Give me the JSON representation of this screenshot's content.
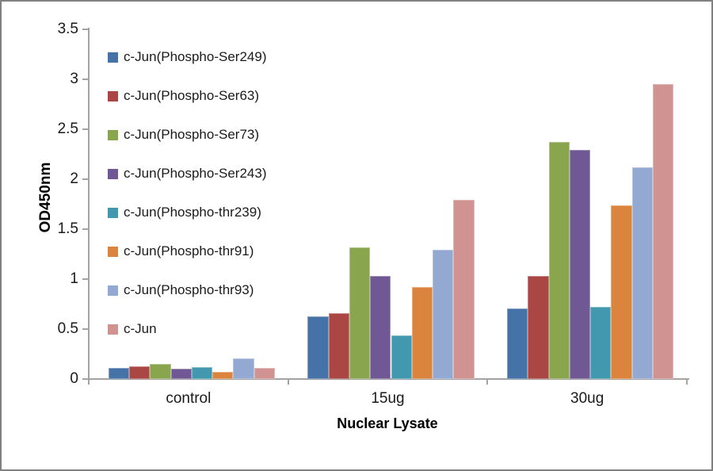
{
  "chart_data": {
    "type": "bar",
    "title": "",
    "xlabel": "Nuclear Lysate",
    "ylabel": "OD450nm",
    "categories": [
      "control",
      "15ug",
      "30ug"
    ],
    "series": [
      {
        "name": "c-Jun(Phospho-Ser249)",
        "color": "#4572A7",
        "values": [
          0.11,
          0.63,
          0.71
        ]
      },
      {
        "name": "c-Jun(Phospho-Ser63)",
        "color": "#AA4643",
        "values": [
          0.13,
          0.66,
          1.03
        ]
      },
      {
        "name": "c-Jun(Phospho-Ser73)",
        "color": "#89A54E",
        "values": [
          0.15,
          1.32,
          2.37
        ]
      },
      {
        "name": "c-Jun(Phospho-Ser243)",
        "color": "#6F5893",
        "values": [
          0.1,
          1.03,
          2.29
        ]
      },
      {
        "name": "c-Jun(Phospho-thr239)",
        "color": "#4198AF",
        "values": [
          0.12,
          0.44,
          0.72
        ]
      },
      {
        "name": "c-Jun(Phospho-thr91)",
        "color": "#DB843D",
        "values": [
          0.07,
          0.92,
          1.74
        ]
      },
      {
        "name": "c-Jun(Phospho-thr93)",
        "color": "#93A9D1",
        "values": [
          0.21,
          1.29,
          2.12
        ]
      },
      {
        "name": "c-Jun",
        "color": "#D19392",
        "values": [
          0.11,
          1.79,
          2.95
        ]
      }
    ],
    "ylim": [
      0,
      3.5
    ],
    "ytick_step": 0.5,
    "yticks": [
      "0",
      "0.5",
      "1",
      "1.5",
      "2",
      "2.5",
      "3",
      "3.5"
    ],
    "grid": false,
    "legend_position": "inside-top-left",
    "axis_color": "#a3a3a3",
    "text_color": "#1a1a1a"
  }
}
